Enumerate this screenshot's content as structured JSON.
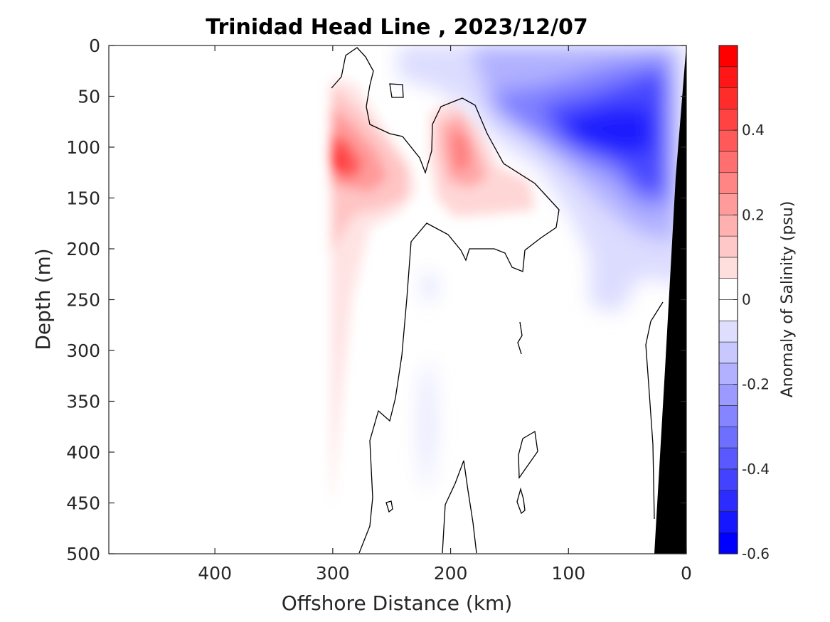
{
  "chart_data": {
    "type": "heatmap",
    "title": "Trinidad Head Line , 2023/12/07",
    "xlabel": "Offshore Distance (km)",
    "ylabel": "Depth (m)",
    "xlim": [
      490,
      0
    ],
    "ylim": [
      500,
      0
    ],
    "x_reversed": true,
    "y_reversed": true,
    "x_ticks": [
      400,
      300,
      200,
      100,
      0
    ],
    "y_ticks": [
      0,
      50,
      100,
      150,
      200,
      250,
      300,
      350,
      400,
      450,
      500
    ],
    "colorbar": {
      "label": "Anomaly of Salinity (psu)",
      "range": [
        -0.6,
        0.6
      ],
      "tick_values": [
        -0.6,
        -0.4,
        -0.2,
        0,
        0.2,
        0.4
      ],
      "tick_labels": [
        "-0.6",
        "-0.4",
        "-0.2",
        "0",
        "0.2",
        "0.4"
      ],
      "levels": [
        -0.6,
        -0.55,
        -0.5,
        -0.45,
        -0.4,
        -0.35,
        -0.3,
        -0.25,
        -0.2,
        -0.15,
        -0.1,
        -0.05,
        0,
        0.05,
        0.1,
        0.15,
        0.2,
        0.25,
        0.3,
        0.35,
        0.4,
        0.45,
        0.5,
        0.55,
        0.6
      ],
      "colormap": "blue-white-red"
    },
    "features": [
      {
        "name": "positive anomaly core (nearshore-offshore edge)",
        "x_km": 292,
        "depth_m": 118,
        "value": 0.45
      },
      {
        "name": "positive anomaly core",
        "x_km": 190,
        "depth_m": 105,
        "value": 0.25
      },
      {
        "name": "negative anomaly core",
        "x_km": 70,
        "depth_m": 85,
        "value": -0.55
      },
      {
        "name": "negative anomaly core",
        "x_km": 40,
        "depth_m": 90,
        "value": -0.5
      }
    ],
    "colors": {
      "positive_max": "#ff0000",
      "negative_max": "#0000ff",
      "zero": "#ffffff",
      "bathymetry": "#000000"
    }
  }
}
